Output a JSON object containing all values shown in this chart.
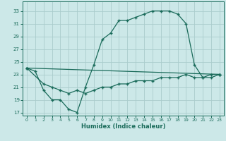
{
  "title": "",
  "xlabel": "Humidex (Indice chaleur)",
  "ylabel": "",
  "bg_color": "#cce8e8",
  "grid_color": "#aacccc",
  "line_color": "#1a6b5a",
  "xlim": [
    -0.5,
    23.5
  ],
  "ylim": [
    16.5,
    34.5
  ],
  "xticks": [
    0,
    1,
    2,
    3,
    4,
    5,
    6,
    7,
    8,
    9,
    10,
    11,
    12,
    13,
    14,
    15,
    16,
    17,
    18,
    19,
    20,
    21,
    22,
    23
  ],
  "yticks": [
    17,
    19,
    21,
    23,
    25,
    27,
    29,
    31,
    33
  ],
  "line1_x": [
    0,
    1,
    2,
    3,
    4,
    5,
    6,
    7,
    8,
    9,
    10,
    11,
    12,
    13,
    14,
    15,
    16,
    17,
    18,
    19,
    20,
    21,
    22,
    23
  ],
  "line1_y": [
    24.0,
    23.5,
    20.5,
    19.0,
    19.0,
    17.5,
    17.0,
    21.0,
    24.5,
    28.5,
    29.5,
    31.5,
    31.5,
    32.0,
    32.5,
    33.0,
    33.0,
    33.0,
    32.5,
    31.0,
    24.5,
    22.5,
    22.5,
    23.0
  ],
  "line2_x": [
    0,
    2,
    3,
    4,
    5,
    6,
    7,
    8,
    9,
    10,
    11,
    12,
    13,
    14,
    15,
    16,
    17,
    18,
    19,
    20,
    21,
    22,
    23
  ],
  "line2_y": [
    24.0,
    21.5,
    21.0,
    20.5,
    20.0,
    20.5,
    20.0,
    20.5,
    21.0,
    21.0,
    21.5,
    21.5,
    22.0,
    22.0,
    22.0,
    22.5,
    22.5,
    22.5,
    23.0,
    22.5,
    22.5,
    23.0,
    23.0
  ],
  "line3_x": [
    0,
    23
  ],
  "line3_y": [
    24.0,
    23.0
  ]
}
